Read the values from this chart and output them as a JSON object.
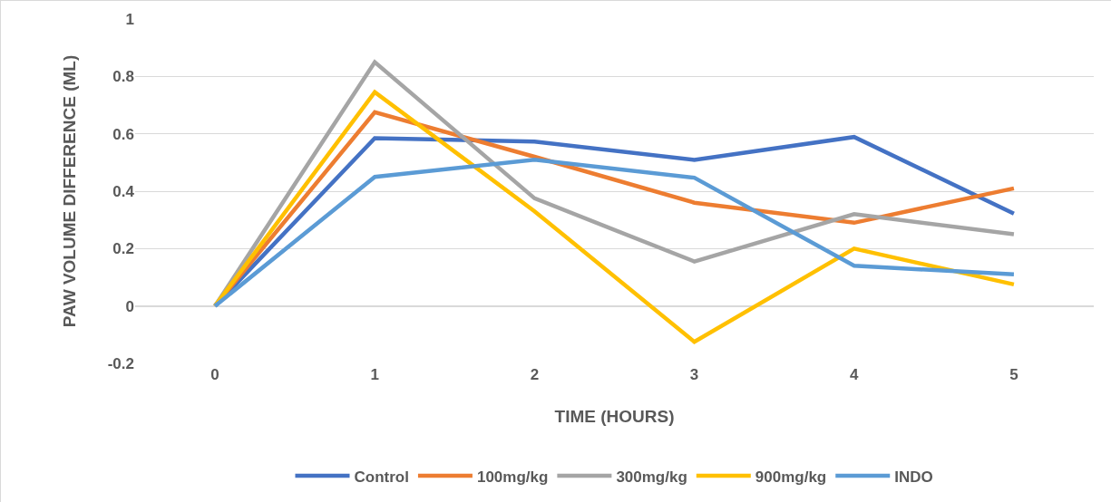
{
  "chart_data": {
    "type": "line",
    "xlabel": "TIME (HOURS)",
    "ylabel": "PAW VOLUME DIFFERENCE (ML)",
    "categories": [
      "0",
      "1",
      "2",
      "3",
      "4",
      "5"
    ],
    "ylim": [
      -0.2,
      1
    ],
    "yticks": [
      -0.2,
      0,
      0.2,
      0.4,
      0.6,
      0.8,
      1
    ],
    "grid": "y",
    "legend": "bottom",
    "marker": "none",
    "line_style": "solid",
    "series": [
      {
        "name": "Control",
        "color": "#4472c4",
        "values": [
          0,
          0.585,
          0.573,
          0.509,
          0.589,
          0.322
        ]
      },
      {
        "name": "100mg/kg",
        "color": "#ed7d31",
        "values": [
          0,
          0.675,
          0.52,
          0.36,
          0.29,
          0.41
        ]
      },
      {
        "name": "300mg/kg",
        "color": "#a5a5a5",
        "values": [
          0,
          0.85,
          0.375,
          0.155,
          0.32,
          0.25
        ]
      },
      {
        "name": "900mg/kg",
        "color": "#ffc000",
        "values": [
          0,
          0.745,
          0.33,
          -0.125,
          0.2,
          0.075
        ]
      },
      {
        "name": "INDO",
        "color": "#5b9bd5",
        "values": [
          0,
          0.45,
          0.51,
          0.447,
          0.14,
          0.11
        ]
      }
    ]
  }
}
